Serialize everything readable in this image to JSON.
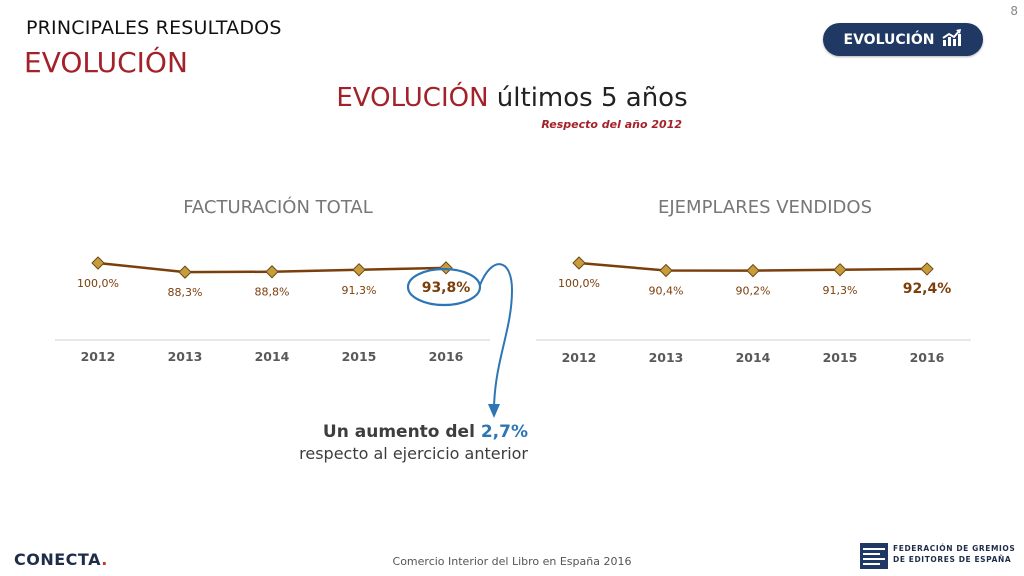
{
  "header": {
    "kicker": "PRINCIPALES RESULTADOS",
    "title": "EVOLUCIÓN",
    "page_number": "8"
  },
  "badge": {
    "label": "EVOLUCIÓN",
    "icon": "trend-up-chart-icon"
  },
  "main": {
    "title_highlight": "EVOLUCIÓN",
    "title_rest": "últimos 5 años",
    "subtitle": "Respecto del año 2012"
  },
  "chart_data": [
    {
      "type": "line",
      "title": "FACTURACIÓN TOTAL",
      "categories": [
        "2012",
        "2013",
        "2014",
        "2015",
        "2016"
      ],
      "values": [
        100.0,
        88.3,
        88.8,
        91.3,
        93.8
      ],
      "labels": [
        "100,0%",
        "88,3%",
        "88,8%",
        "91,3%",
        "93,8%"
      ],
      "highlight_index": 4,
      "color": "#7b3f0c",
      "marker_color": "#c89b3c"
    },
    {
      "type": "line",
      "title": "EJEMPLARES VENDIDOS",
      "categories": [
        "2012",
        "2013",
        "2014",
        "2015",
        "2016"
      ],
      "values": [
        100.0,
        90.4,
        90.2,
        91.3,
        92.4
      ],
      "labels": [
        "100,0%",
        "90,4%",
        "90,2%",
        "91,3%",
        "92,4%"
      ],
      "highlight_index": 4,
      "color": "#7b3f0c",
      "marker_color": "#c89b3c"
    }
  ],
  "callout": {
    "line1_prefix": "Un aumento del",
    "line1_value": "2,7%",
    "line2": "respecto al ejercicio anterior"
  },
  "footer": {
    "brand": "CONECTA",
    "brand_dot": ".",
    "center_text": "Comercio Interior del Libro en España 2016",
    "federation_line1": "FEDERACIÓN DE GREMIOS",
    "federation_line2": "DE EDITORES DE ESPAÑA"
  }
}
